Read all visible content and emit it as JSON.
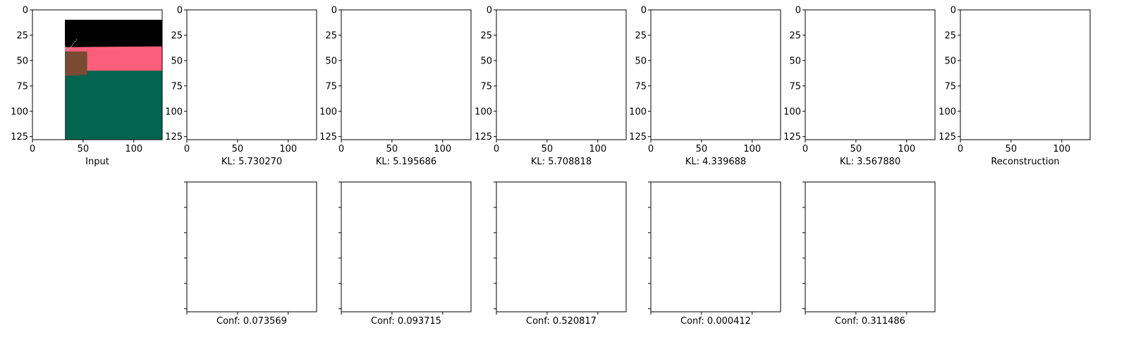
{
  "figure": {
    "colors": {
      "background": "#000000",
      "ground": "#03654f",
      "wall": "#fb5e7b",
      "object": "#7a4a33",
      "object_dark": "#5f3828",
      "highlight": "#f5e63c",
      "white": "#ffffff",
      "heat_dark": "#0c0000",
      "heat_mid": "#b82a00",
      "heat_hot": "#ffdd33",
      "axis": "#000000"
    }
  },
  "chart_data": {
    "type": "image_grid",
    "axis": {
      "xlim": [
        0,
        128
      ],
      "ylim": [
        128,
        0
      ],
      "xticks": [
        0,
        50,
        100
      ],
      "yticks": [
        0,
        25,
        50,
        75,
        100,
        125
      ]
    },
    "top_row": [
      {
        "kind": "input",
        "caption": "Input",
        "show_ticks": true
      },
      {
        "kind": "slot",
        "caption": "KL: 5.730270",
        "kl": 5.73027,
        "show_ticks": true
      },
      {
        "kind": "slot",
        "caption": "KL: 5.195686",
        "kl": 5.195686,
        "show_ticks": true
      },
      {
        "kind": "slot",
        "caption": "KL: 5.708818",
        "kl": 5.708818,
        "show_ticks": true
      },
      {
        "kind": "slot",
        "caption": "KL: 4.339688",
        "kl": 4.339688,
        "show_ticks": true
      },
      {
        "kind": "slot",
        "caption": "KL: 3.567880",
        "kl": 3.56788,
        "show_ticks": true
      },
      {
        "kind": "reconstruction",
        "caption": "Reconstruction",
        "show_ticks": true
      }
    ],
    "bottom_row": [
      {
        "caption": "Conf: 0.073569",
        "conf": 0.073569
      },
      {
        "caption": "Conf: 0.093715",
        "conf": 0.093715
      },
      {
        "caption": "Conf: 0.520817",
        "conf": 0.520817
      },
      {
        "caption": "Conf: 0.000412",
        "conf": 0.000412
      },
      {
        "caption": "Conf: 0.311486",
        "conf": 0.311486
      }
    ]
  }
}
